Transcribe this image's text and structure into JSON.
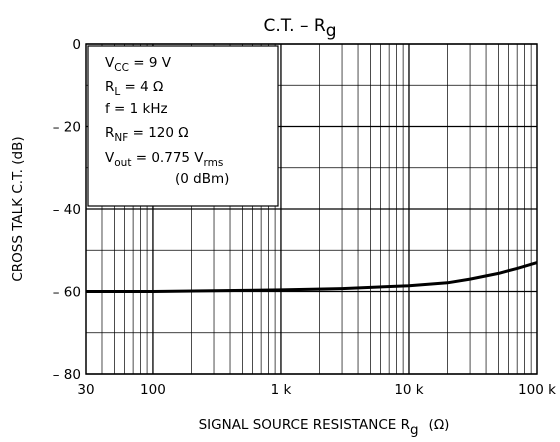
{
  "chart_data": {
    "type": "line",
    "title": {
      "main": "C.T.  –  R",
      "sub": "g"
    },
    "xlabel": {
      "main": "SIGNAL SOURCE RESISTANCE   R",
      "sub": "g",
      "unit": "(Ω)"
    },
    "ylabel": "CROSS TALK  C.T.  (dB)",
    "x_scale": "log",
    "xlim": [
      30,
      100000
    ],
    "ylim": [
      -80,
      0
    ],
    "grid": true,
    "x_ticks": [
      {
        "value": 30,
        "label": "30"
      },
      {
        "value": 100,
        "label": "100"
      },
      {
        "value": 1000,
        "label": "1 k"
      },
      {
        "value": 10000,
        "label": "10 k"
      },
      {
        "value": 100000,
        "label": "100 k"
      }
    ],
    "y_ticks": [
      {
        "value": 0,
        "label": "0"
      },
      {
        "value": -20,
        "label": "– 20"
      },
      {
        "value": -40,
        "label": "– 40"
      },
      {
        "value": -60,
        "label": "– 60"
      },
      {
        "value": -80,
        "label": "– 80"
      }
    ],
    "conditions": [
      [
        {
          "t": "V"
        },
        {
          "t": "CC",
          "sub": true
        },
        {
          "t": " = 9 V"
        }
      ],
      [
        {
          "t": "R"
        },
        {
          "t": "L",
          "sub": true
        },
        {
          "t": " = 4 Ω"
        }
      ],
      [
        {
          "t": "f = 1 kHz"
        }
      ],
      [
        {
          "t": "R"
        },
        {
          "t": "NF",
          "sub": true
        },
        {
          "t": " = 120 Ω"
        }
      ],
      [
        {
          "t": "V"
        },
        {
          "t": "out",
          "sub": true
        },
        {
          "t": " =  0.775 V"
        },
        {
          "t": "rms",
          "sub": true
        }
      ],
      [
        {
          "t": "(0 dBm)"
        }
      ]
    ],
    "series": [
      {
        "x": [
          30,
          100,
          300,
          1000,
          3000,
          10000,
          20000,
          30000,
          50000,
          70000,
          100000
        ],
        "y": [
          -60,
          -60,
          -59.8,
          -59.6,
          -59.3,
          -58.6,
          -57.9,
          -57,
          -55.6,
          -54.4,
          -53
        ]
      }
    ]
  }
}
